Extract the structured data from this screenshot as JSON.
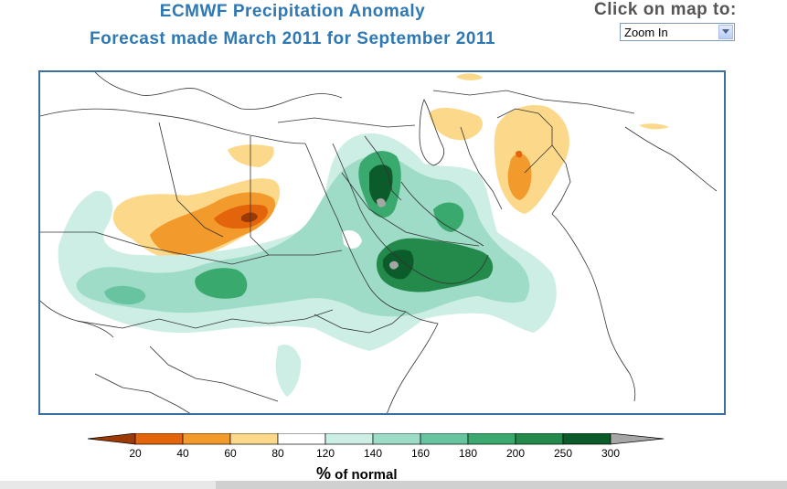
{
  "header": {
    "title": "ECMWF Precipitation Anomaly",
    "subtitle": "Forecast made March 2011 for September 2011"
  },
  "controls": {
    "click_label": "Click on map to:",
    "zoom_selected": "Zoom In"
  },
  "legend": {
    "unit_symbol": "%",
    "unit_text": " of normal",
    "ticks": [
      "20",
      "40",
      "60",
      "80",
      "120",
      "140",
      "160",
      "180",
      "200",
      "250",
      "300"
    ],
    "colors": {
      "below_20": "#9c3a06",
      "20_40": "#e3640a",
      "40_60": "#f39a2c",
      "60_80": "#fcd98a",
      "80_120": "#ffffff",
      "120_140": "#cdeee4",
      "140_160": "#9fdcc8",
      "160_180": "#68c4a0",
      "180_200": "#3aa96e",
      "200_250": "#238a4c",
      "250_300": "#0c5b2a",
      "above_300": "#a6a6a6"
    }
  },
  "map": {
    "colors": {
      "outline": "#333333",
      "frame": "#3b6fa0"
    }
  }
}
